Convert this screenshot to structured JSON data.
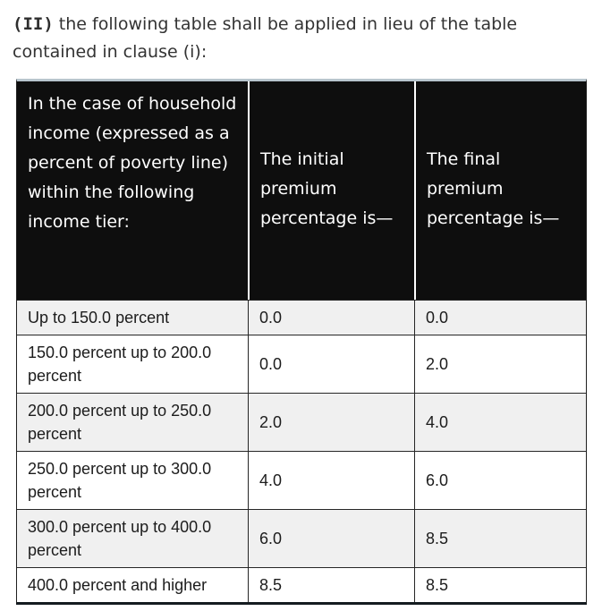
{
  "intro": {
    "clause_marker": "(II)",
    "text": " the following table shall be applied in lieu of the table contained in clause (i):"
  },
  "table": {
    "headers": {
      "tier": "In the case of household income (expressed as a percent of poverty line) within the following income tier:",
      "initial": "The initial premium percentage is—",
      "final": "The final premium percentage is—"
    },
    "rows": [
      {
        "tier": "Up to 150.0 percent",
        "initial": "0.0",
        "final": "0.0"
      },
      {
        "tier": "150.0 percent up to 200.0 percent",
        "initial": "0.0",
        "final": "2.0"
      },
      {
        "tier": "200.0 percent up to 250.0 percent",
        "initial": "2.0",
        "final": "4.0"
      },
      {
        "tier": "250.0 percent up to 300.0 percent",
        "initial": "4.0",
        "final": "6.0"
      },
      {
        "tier": "300.0 percent up to 400.0 percent",
        "initial": "6.0",
        "final": "8.5"
      },
      {
        "tier": "400.0 percent and higher",
        "initial": "8.5",
        "final": "8.5"
      }
    ],
    "colors": {
      "header_bg": "#0e0e0e",
      "header_text": "#ffffff",
      "stripe": "#f0f0f0",
      "top_accent": "#b8c5cd",
      "bottom_border": "#141b20",
      "grid": "#262626"
    }
  }
}
